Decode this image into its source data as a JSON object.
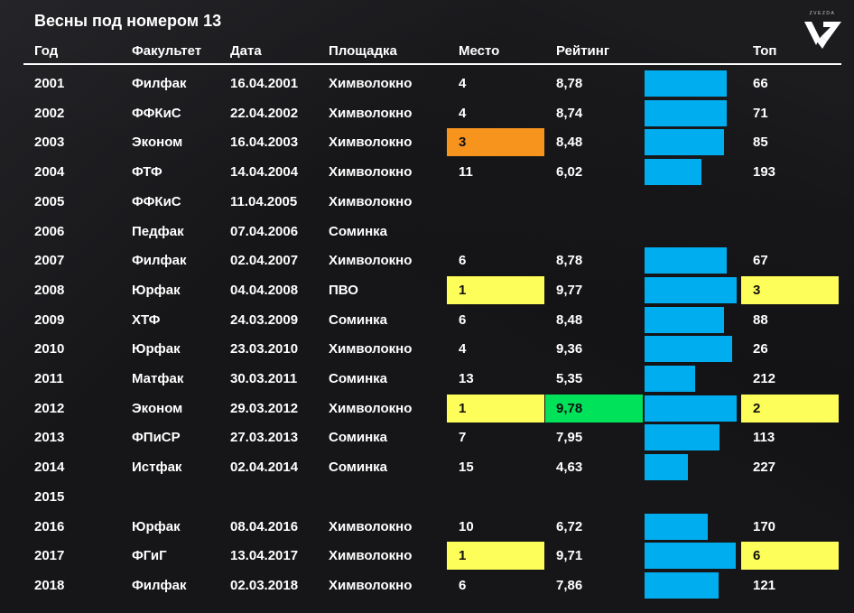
{
  "title": "Весны под номером 13",
  "logo": {
    "text": "ZVEZDA"
  },
  "colors": {
    "bar": "#00adef",
    "highlight_yellow": "#fefe5a",
    "highlight_orange": "#f7941d",
    "highlight_green": "#00e25a"
  },
  "columns": {
    "year": "Год",
    "faculty": "Факультет",
    "date": "Дата",
    "venue": "Площадка",
    "place": "Место",
    "rating": "Рейтинг",
    "top": "Топ"
  },
  "chart_data": {
    "type": "table",
    "title": "Весны под номером 13",
    "bar_column": "Рейтинг",
    "bar_range": [
      0,
      10
    ],
    "rows": [
      {
        "year": "2001",
        "faculty": "Филфак",
        "date": "16.04.2001",
        "venue": "Химволокно",
        "place": "4",
        "rating": "8,78",
        "rating_value": 8.78,
        "top": "66",
        "place_hl": "",
        "rating_hl": "",
        "top_hl": ""
      },
      {
        "year": "2002",
        "faculty": "ФФКиС",
        "date": "22.04.2002",
        "venue": "Химволокно",
        "place": "4",
        "rating": "8,74",
        "rating_value": 8.74,
        "top": "71",
        "place_hl": "",
        "rating_hl": "",
        "top_hl": ""
      },
      {
        "year": "2003",
        "faculty": "Эконом",
        "date": "16.04.2003",
        "venue": "Химволокно",
        "place": "3",
        "rating": "8,48",
        "rating_value": 8.48,
        "top": "85",
        "place_hl": "orange",
        "rating_hl": "",
        "top_hl": ""
      },
      {
        "year": "2004",
        "faculty": "ФТФ",
        "date": "14.04.2004",
        "venue": "Химволокно",
        "place": "11",
        "rating": "6,02",
        "rating_value": 6.02,
        "top": "193",
        "place_hl": "",
        "rating_hl": "",
        "top_hl": ""
      },
      {
        "year": "2005",
        "faculty": "ФФКиС",
        "date": "11.04.2005",
        "venue": "Химволокно",
        "place": "",
        "rating": "",
        "rating_value": null,
        "top": "",
        "place_hl": "",
        "rating_hl": "",
        "top_hl": ""
      },
      {
        "year": "2006",
        "faculty": "Педфак",
        "date": "07.04.2006",
        "venue": "Соминка",
        "place": "",
        "rating": "",
        "rating_value": null,
        "top": "",
        "place_hl": "",
        "rating_hl": "",
        "top_hl": ""
      },
      {
        "year": "2007",
        "faculty": "Филфак",
        "date": "02.04.2007",
        "venue": "Химволокно",
        "place": "6",
        "rating": "8,78",
        "rating_value": 8.78,
        "top": "67",
        "place_hl": "",
        "rating_hl": "",
        "top_hl": ""
      },
      {
        "year": "2008",
        "faculty": "Юрфак",
        "date": "04.04.2008",
        "venue": "ПВО",
        "place": "1",
        "rating": "9,77",
        "rating_value": 9.77,
        "top": "3",
        "place_hl": "yellow",
        "rating_hl": "",
        "top_hl": "yellow"
      },
      {
        "year": "2009",
        "faculty": "ХТФ",
        "date": "24.03.2009",
        "venue": "Соминка",
        "place": "6",
        "rating": "8,48",
        "rating_value": 8.48,
        "top": "88",
        "place_hl": "",
        "rating_hl": "",
        "top_hl": ""
      },
      {
        "year": "2010",
        "faculty": "Юрфак",
        "date": "23.03.2010",
        "venue": "Химволокно",
        "place": "4",
        "rating": "9,36",
        "rating_value": 9.36,
        "top": "26",
        "place_hl": "",
        "rating_hl": "",
        "top_hl": ""
      },
      {
        "year": "2011",
        "faculty": "Матфак",
        "date": "30.03.2011",
        "venue": "Соминка",
        "place": "13",
        "rating": "5,35",
        "rating_value": 5.35,
        "top": "212",
        "place_hl": "",
        "rating_hl": "",
        "top_hl": ""
      },
      {
        "year": "2012",
        "faculty": "Эконом",
        "date": "29.03.2012",
        "venue": "Химволокно",
        "place": "1",
        "rating": "9,78",
        "rating_value": 9.78,
        "top": "2",
        "place_hl": "yellow",
        "rating_hl": "green",
        "top_hl": "yellow"
      },
      {
        "year": "2013",
        "faculty": "ФПиСР",
        "date": "27.03.2013",
        "venue": "Соминка",
        "place": "7",
        "rating": "7,95",
        "rating_value": 7.95,
        "top": "113",
        "place_hl": "",
        "rating_hl": "",
        "top_hl": ""
      },
      {
        "year": "2014",
        "faculty": "Истфак",
        "date": "02.04.2014",
        "venue": "Соминка",
        "place": "15",
        "rating": "4,63",
        "rating_value": 4.63,
        "top": "227",
        "place_hl": "",
        "rating_hl": "",
        "top_hl": ""
      },
      {
        "year": "2015",
        "faculty": "",
        "date": "",
        "venue": "",
        "place": "",
        "rating": "",
        "rating_value": null,
        "top": "",
        "place_hl": "",
        "rating_hl": "",
        "top_hl": ""
      },
      {
        "year": "2016",
        "faculty": "Юрфак",
        "date": "08.04.2016",
        "venue": "Химволокно",
        "place": "10",
        "rating": "6,72",
        "rating_value": 6.72,
        "top": "170",
        "place_hl": "",
        "rating_hl": "",
        "top_hl": ""
      },
      {
        "year": "2017",
        "faculty": "ФГиГ",
        "date": "13.04.2017",
        "venue": "Химволокно",
        "place": "1",
        "rating": "9,71",
        "rating_value": 9.71,
        "top": "6",
        "place_hl": "yellow",
        "rating_hl": "",
        "top_hl": "yellow"
      },
      {
        "year": "2018",
        "faculty": "Филфак",
        "date": "02.03.2018",
        "venue": "Химволокно",
        "place": "6",
        "rating": "7,86",
        "rating_value": 7.86,
        "top": "121",
        "place_hl": "",
        "rating_hl": "",
        "top_hl": ""
      }
    ]
  }
}
